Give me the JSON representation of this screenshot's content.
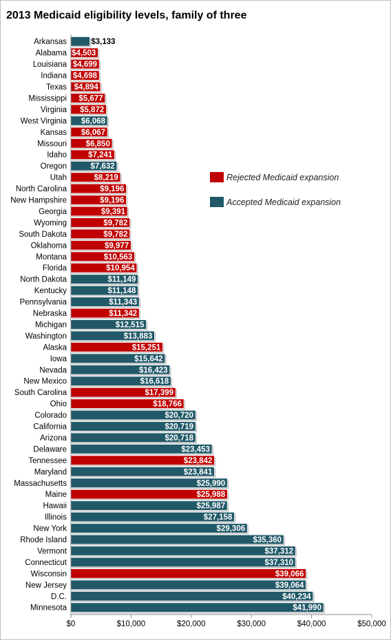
{
  "chart_data": {
    "type": "bar",
    "orientation": "horizontal",
    "title": "2013 Medicaid eligibility levels, family of three",
    "xlim": [
      0,
      50000
    ],
    "x_ticks": [
      "$0",
      "$10,000",
      "$20,000",
      "$30,000",
      "$40,000",
      "$50,000"
    ],
    "x_tick_values": [
      0,
      10000,
      20000,
      30000,
      40000,
      50000
    ],
    "grid": false,
    "legend_position": "right",
    "legend": [
      {
        "label": "Rejected Medicaid expansion",
        "color": "#c00000"
      },
      {
        "label": "Accepted Medicaid expansion",
        "color": "#215968"
      }
    ],
    "colors": {
      "rejected": "#c00000",
      "accepted": "#215968"
    },
    "categories": [
      "Arkansas",
      "Alabama",
      "Louisiana",
      "Indiana",
      "Texas",
      "Mississippi",
      "Virginia",
      "West Virginia",
      "Kansas",
      "Missouri",
      "Idaho",
      "Oregon",
      "Utah",
      "North Carolina",
      "New Hampshire",
      "Georgia",
      "Wyoming",
      "South Dakota",
      "Oklahoma",
      "Montana",
      "Florida",
      "North Dakota",
      "Kentucky",
      "Pennsylvania",
      "Nebraska",
      "Michigan",
      "Washington",
      "Alaska",
      "Iowa",
      "Nevada",
      "New Mexico",
      "South Carolina",
      "Ohio",
      "Colorado",
      "California",
      "Arizona",
      "Delaware",
      "Tennessee",
      "Maryland",
      "Massachusetts",
      "Maine",
      "Hawaii",
      "Illinois",
      "New York",
      "Rhode Island",
      "Vermont",
      "Connecticut",
      "Wisconsin",
      "New Jersey",
      "D.C.",
      "Minnesota"
    ],
    "values": [
      3133,
      4503,
      4699,
      4698,
      4894,
      5677,
      5872,
      6068,
      6067,
      6850,
      7241,
      7632,
      8219,
      9196,
      9196,
      9391,
      9782,
      9782,
      9977,
      10563,
      10954,
      11149,
      11148,
      11343,
      11342,
      12515,
      13883,
      15251,
      15642,
      16423,
      16618,
      17399,
      18766,
      20720,
      20719,
      20718,
      23453,
      23842,
      23841,
      25990,
      25988,
      25987,
      27158,
      29306,
      35360,
      37312,
      37310,
      39066,
      39064,
      40234,
      41990
    ],
    "labels": [
      "$3,133",
      "$4,503",
      "$4,699",
      "$4,698",
      "$4,894",
      "$5,677",
      "$5,872",
      "$6,068",
      "$6,067",
      "$6,850",
      "$7,241",
      "$7,632",
      "$8,219",
      "$9,196",
      "$9,196",
      "$9,391",
      "$9,782",
      "$9,782",
      "$9,977",
      "$10,563",
      "$10,954",
      "$11,149",
      "$11,148",
      "$11,343",
      "$11,342",
      "$12,515",
      "$13,883",
      "$15,251",
      "$15,642",
      "$16,423",
      "$16,618",
      "$17,399",
      "$18,766",
      "$20,720",
      "$20,719",
      "$20,718",
      "$23,453",
      "$23,842",
      "$23,841",
      "$25,990",
      "$25,988",
      "$25,987",
      "$27,158",
      "$29,306",
      "$35,360",
      "$37,312",
      "$37,310",
      "$39,066",
      "$39,064",
      "$40,234",
      "$41,990"
    ],
    "status": [
      "accepted",
      "rejected",
      "rejected",
      "rejected",
      "rejected",
      "rejected",
      "rejected",
      "accepted",
      "rejected",
      "rejected",
      "rejected",
      "accepted",
      "rejected",
      "rejected",
      "rejected",
      "rejected",
      "rejected",
      "rejected",
      "rejected",
      "rejected",
      "rejected",
      "accepted",
      "accepted",
      "accepted",
      "rejected",
      "accepted",
      "accepted",
      "rejected",
      "accepted",
      "accepted",
      "accepted",
      "rejected",
      "rejected",
      "accepted",
      "accepted",
      "accepted",
      "accepted",
      "rejected",
      "accepted",
      "accepted",
      "rejected",
      "accepted",
      "accepted",
      "accepted",
      "accepted",
      "accepted",
      "accepted",
      "rejected",
      "accepted",
      "accepted",
      "accepted"
    ]
  }
}
